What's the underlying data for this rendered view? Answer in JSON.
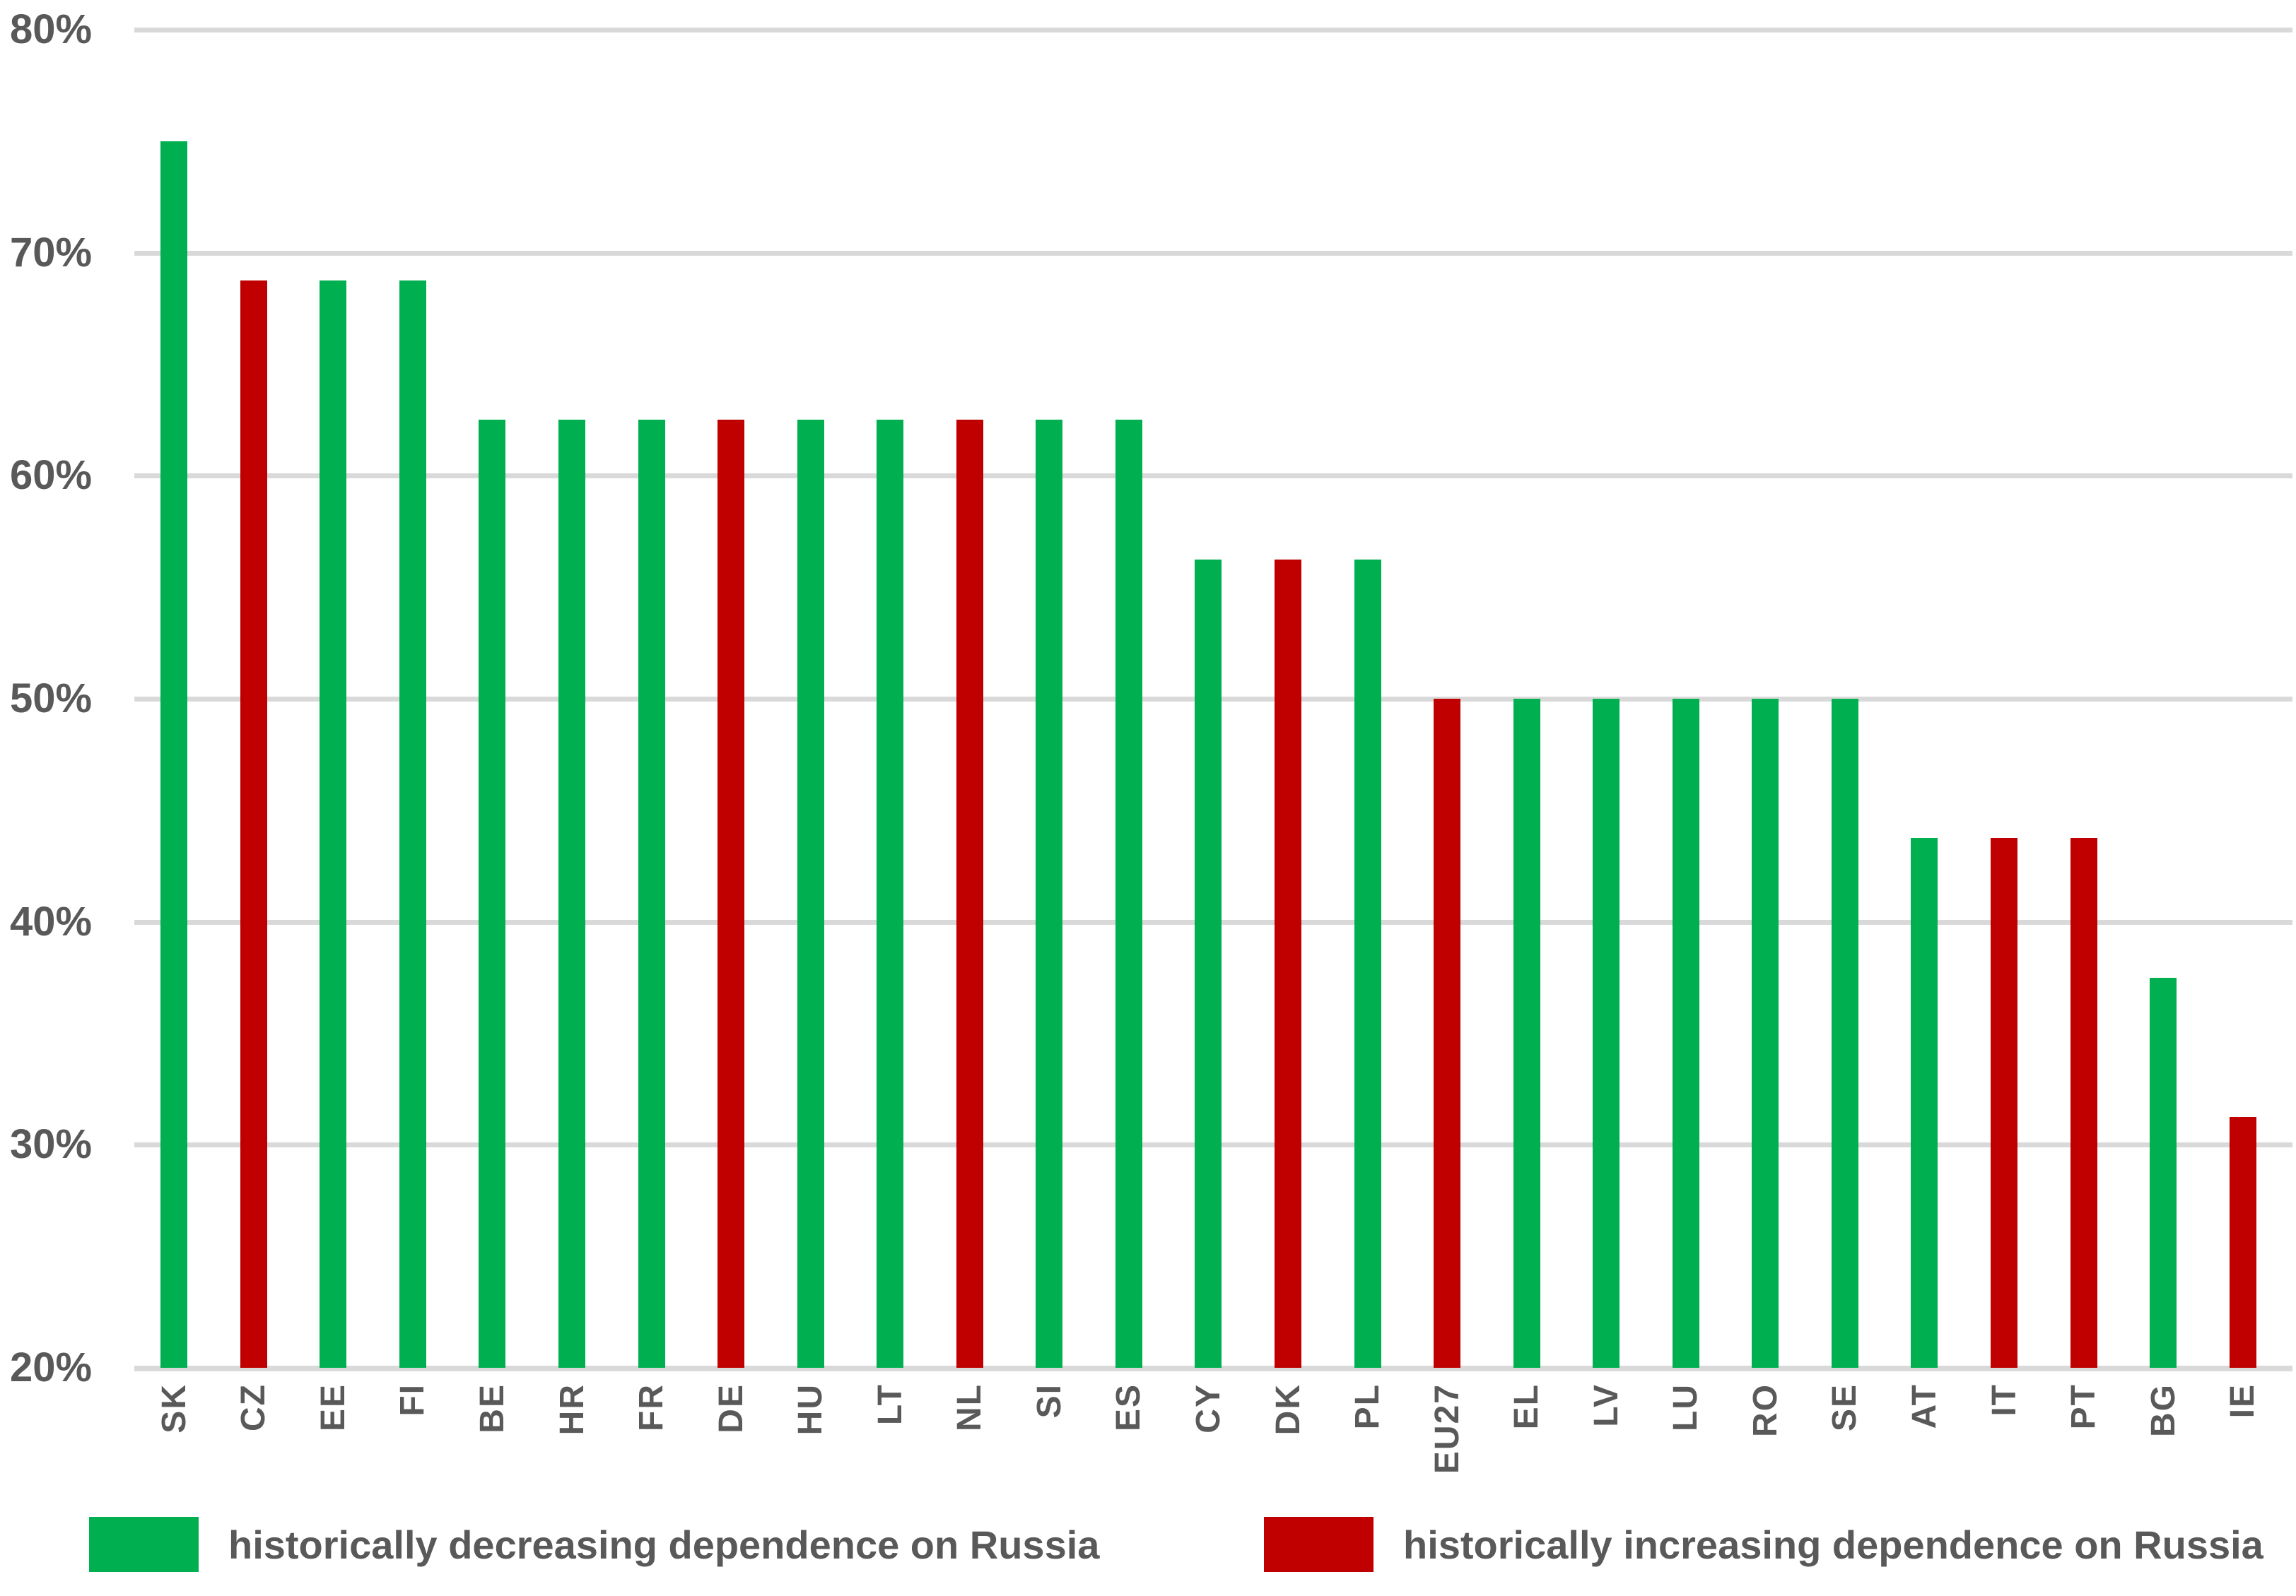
{
  "chart_data": {
    "type": "bar",
    "title": "",
    "xlabel": "",
    "ylabel": "",
    "categories": [
      "SK",
      "CZ",
      "EE",
      "FI",
      "BE",
      "HR",
      "FR",
      "DE",
      "HU",
      "LT",
      "NL",
      "SI",
      "ES",
      "CY",
      "DK",
      "PL",
      "EU27",
      "EL",
      "LV",
      "LU",
      "RO",
      "SE",
      "AT",
      "IT",
      "PT",
      "BG",
      "IE"
    ],
    "values": [
      75,
      68.75,
      68.75,
      68.75,
      62.5,
      62.5,
      62.5,
      62.5,
      62.5,
      62.5,
      62.5,
      62.5,
      62.5,
      56.25,
      56.25,
      56.25,
      50,
      50,
      50,
      50,
      50,
      50,
      43.75,
      43.75,
      43.75,
      37.5,
      31.25
    ],
    "point_groups": [
      "decreasing",
      "increasing",
      "decreasing",
      "decreasing",
      "decreasing",
      "decreasing",
      "decreasing",
      "increasing",
      "decreasing",
      "decreasing",
      "increasing",
      "decreasing",
      "decreasing",
      "decreasing",
      "increasing",
      "decreasing",
      "increasing",
      "decreasing",
      "decreasing",
      "decreasing",
      "decreasing",
      "decreasing",
      "decreasing",
      "increasing",
      "increasing",
      "decreasing",
      "increasing"
    ],
    "ylim": [
      20,
      80
    ],
    "y_ticks": [
      {
        "label": "80%",
        "value": 80
      },
      {
        "label": "70%",
        "value": 70
      },
      {
        "label": "60%",
        "value": 60
      },
      {
        "label": "50%",
        "value": 50
      },
      {
        "label": "40%",
        "value": 40
      },
      {
        "label": "30%",
        "value": 30
      },
      {
        "label": "20%",
        "value": 20
      }
    ],
    "grid": true,
    "legend_position": "bottom",
    "legend": [
      {
        "key": "decreasing",
        "label": "historically decreasing dependence on Russia",
        "color": "#00B050"
      },
      {
        "key": "increasing",
        "label": "historically increasing dependence on Russia",
        "color": "#C00000"
      }
    ]
  },
  "colors": {
    "grid": "#D9D9D9",
    "text": "#595959",
    "background": "#FFFFFF"
  }
}
